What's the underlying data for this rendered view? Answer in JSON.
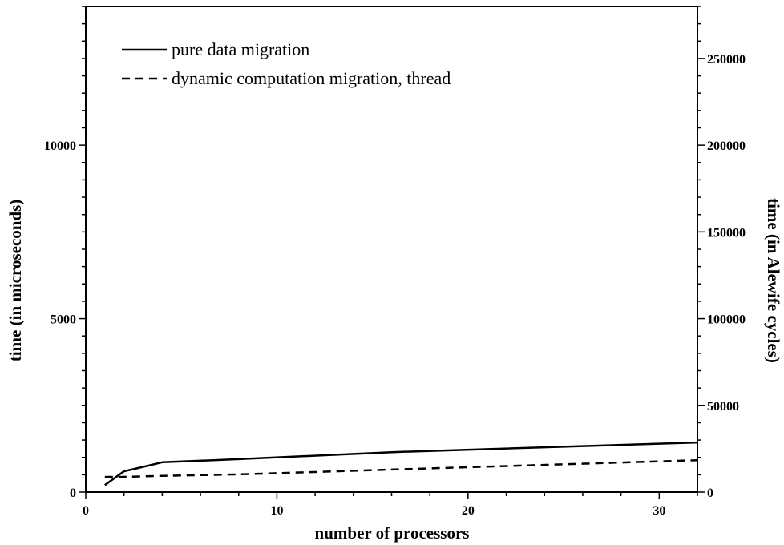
{
  "chart_data": {
    "type": "line",
    "xlabel": "number of processors",
    "ylabel": "time (in microseconds)",
    "y2label": "time (in Alewife cycles)",
    "xlim": [
      0,
      32
    ],
    "ylim": [
      0,
      14000
    ],
    "y2lim": [
      0,
      280000
    ],
    "x_ticks": [
      0,
      10,
      20,
      30
    ],
    "y_ticks": [
      0,
      5000,
      10000
    ],
    "y2_ticks": [
      0,
      50000,
      100000,
      150000,
      200000,
      250000
    ],
    "grid": false,
    "legend_position": "top-left",
    "series": [
      {
        "name": "pure data migration",
        "style": "solid",
        "x": [
          1,
          2,
          2.5,
          4,
          8,
          16,
          32
        ],
        "y": [
          200,
          600,
          660,
          860,
          950,
          1150,
          1430
        ]
      },
      {
        "name": "dynamic computation migration, thread",
        "style": "dashed",
        "x": [
          1,
          2,
          4,
          8,
          16,
          32
        ],
        "y": [
          440,
          440,
          470,
          510,
          650,
          920
        ]
      }
    ]
  }
}
